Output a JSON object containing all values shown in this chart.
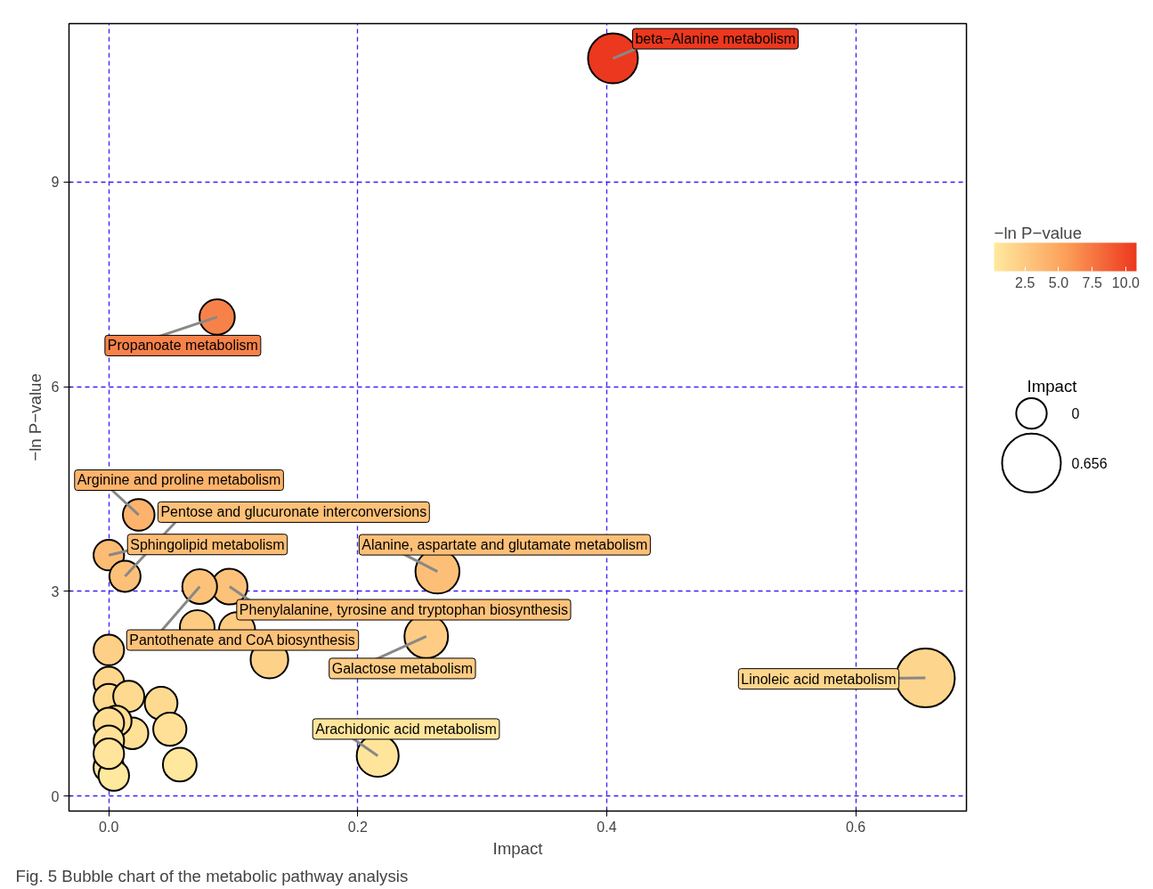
{
  "chart_data": {
    "type": "bubble",
    "xlabel": "Impact",
    "ylabel": "−ln P−value",
    "clabel": "−ln P−value",
    "legend_title": "Impact",
    "xlim": [
      -0.032,
      0.689
    ],
    "ylim": [
      -0.22,
      11.32
    ],
    "xticks": [
      {
        "value": 0,
        "label": "0.0"
      },
      0.2,
      0.4,
      0.6
    ],
    "yticks": [
      0,
      3,
      6,
      9
    ],
    "grid": true,
    "clim": [
      0.2,
      10.8
    ],
    "cticks": [
      {
        "value": 2.5,
        "label": "2.5"
      },
      {
        "value": 5,
        "label": "5.0"
      },
      {
        "value": 7.5,
        "label": "7.5"
      },
      {
        "value": 10,
        "label": "10.0"
      }
    ],
    "size_legend": [
      {
        "value": 0.27,
        "label": "0"
      },
      {
        "value": 1,
        "label": "0.656"
      }
    ],
    "series": [
      {
        "x": [
          0.405,
          0.087,
          0.024,
          0.0,
          0.013,
          0.264,
          0.097,
          0.073,
          0.071,
          0.103,
          0.129,
          0.0,
          0.255,
          0.656,
          0.216,
          0.0,
          0.0,
          0.016,
          0.042,
          0.049,
          0.057,
          0.019,
          0.006,
          0.0,
          0.0,
          0.0,
          0.004,
          0.0
        ],
        "values": [
          10.81,
          7.02,
          4.12,
          3.53,
          3.22,
          3.29,
          3.07,
          3.07,
          2.47,
          2.43,
          2.0,
          2.14,
          2.34,
          1.73,
          0.59,
          1.67,
          1.42,
          1.46,
          1.36,
          0.98,
          0.46,
          0.92,
          1.1,
          1.07,
          0.81,
          0.42,
          0.3,
          0.62
        ],
        "sizes": [
          0.72,
          0.36,
          0.29,
          0.27,
          0.28,
          0.56,
          0.37,
          0.35,
          0.35,
          0.38,
          0.41,
          0.27,
          0.55,
          1,
          0.51,
          0.27,
          0.27,
          0.28,
          0.31,
          0.32,
          0.33,
          0.29,
          0.27,
          0.27,
          0.27,
          0.27,
          0.27,
          0.27
        ],
        "cvalues": [
          10.81,
          7.02,
          4.12,
          3.53,
          3.22,
          3.29,
          3.07,
          3.07,
          2.47,
          2.43,
          2.0,
          2.14,
          2.34,
          1.73,
          0.59,
          1.67,
          1.42,
          1.46,
          1.36,
          0.98,
          0.46,
          0.92,
          1.1,
          1.07,
          0.81,
          0.42,
          0.3,
          0.62
        ]
      }
    ],
    "annotations": [
      {
        "text": "beta−Alanine metabolism",
        "x": 0.405,
        "y": 10.81
      },
      {
        "text": "Propanoate metabolism",
        "x": 0.087,
        "y": 7.02
      },
      {
        "text": "Arginine and proline metabolism",
        "x": 0.024,
        "y": 4.12
      },
      {
        "text": "Pentose and glucuronate interconversions",
        "x": 0.013,
        "y": 3.22
      },
      {
        "text": "Sphingolipid metabolism",
        "x": 0.0,
        "y": 3.53
      },
      {
        "text": "Alanine, aspartate and glutamate metabolism",
        "x": 0.264,
        "y": 3.29
      },
      {
        "text": "Phenylalanine, tyrosine and tryptophan biosynthesis",
        "x": 0.097,
        "y": 3.07
      },
      {
        "text": "Pantothenate and CoA biosynthesis",
        "x": 0.073,
        "y": 3.07
      },
      {
        "text": "Galactose metabolism",
        "x": 0.255,
        "y": 2.34
      },
      {
        "text": "Linoleic acid metabolism",
        "x": 0.656,
        "y": 1.73
      },
      {
        "text": "Arachidonic acid metabolism",
        "x": 0.216,
        "y": 0.59
      },
      "Fig. 5  Bubble chart of the metabolic pathway analysis"
    ]
  }
}
